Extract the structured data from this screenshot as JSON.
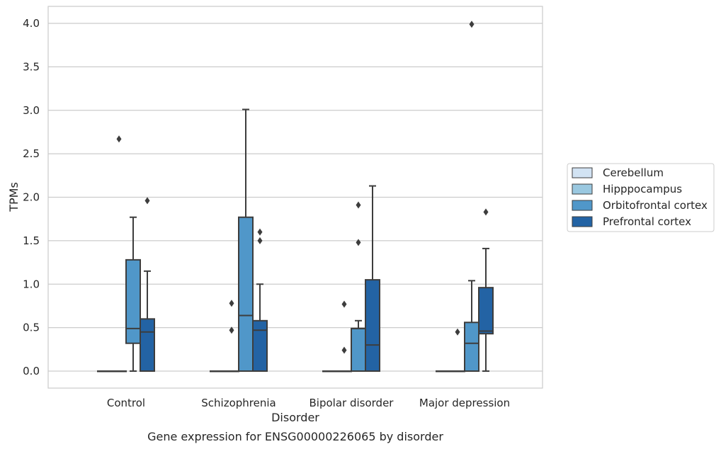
{
  "chart_data": {
    "type": "box",
    "title": "",
    "caption": "Gene expression for ENSG00000226065 by disorder",
    "xlabel": "Disorder",
    "ylabel": "TPMs",
    "ylim": [
      -0.2,
      4.2
    ],
    "yticks": [
      "0.0",
      "0.5",
      "1.0",
      "1.5",
      "2.0",
      "2.5",
      "3.0",
      "3.5",
      "4.0"
    ],
    "grid": "horizontal",
    "legend_position": "right",
    "categories": [
      "Control",
      "Schizophrenia",
      "Bipolar disorder",
      "Major depression"
    ],
    "series": [
      {
        "name": "Cerebellum",
        "color": "#d2e3f3",
        "boxes": [
          {
            "q1": 0,
            "median": 0,
            "q3": 0,
            "whisker_low": 0,
            "whisker_high": 0,
            "outliers": []
          },
          {
            "q1": 0,
            "median": 0,
            "q3": 0,
            "whisker_low": 0,
            "whisker_high": 0,
            "outliers": []
          },
          {
            "q1": 0,
            "median": 0,
            "q3": 0,
            "whisker_low": 0,
            "whisker_high": 0,
            "outliers": []
          },
          {
            "q1": 0,
            "median": 0,
            "q3": 0,
            "whisker_low": 0,
            "whisker_high": 0,
            "outliers": []
          }
        ]
      },
      {
        "name": "Hipppocampus",
        "color": "#9ac8e0",
        "boxes": [
          {
            "q1": 0,
            "median": 0,
            "q3": 0,
            "whisker_low": 0,
            "whisker_high": 0,
            "outliers": [
              2.67
            ]
          },
          {
            "q1": 0,
            "median": 0,
            "q3": 0,
            "whisker_low": 0,
            "whisker_high": 0,
            "outliers": [
              0.47,
              0.78
            ]
          },
          {
            "q1": 0,
            "median": 0,
            "q3": 0,
            "whisker_low": 0,
            "whisker_high": 0,
            "outliers": [
              0.24,
              0.77
            ]
          },
          {
            "q1": 0,
            "median": 0,
            "q3": 0,
            "whisker_low": 0,
            "whisker_high": 0,
            "outliers": [
              0.45
            ]
          }
        ]
      },
      {
        "name": "Orbitofrontal cortex",
        "color": "#5097c9",
        "boxes": [
          {
            "q1": 0.32,
            "median": 0.49,
            "q3": 1.28,
            "whisker_low": 0,
            "whisker_high": 1.77,
            "outliers": []
          },
          {
            "q1": 0,
            "median": 0.64,
            "q3": 1.77,
            "whisker_low": 0,
            "whisker_high": 3.01,
            "outliers": []
          },
          {
            "q1": 0,
            "median": 0.49,
            "q3": 0.49,
            "whisker_low": 0,
            "whisker_high": 0.58,
            "outliers": [
              1.48,
              1.91
            ]
          },
          {
            "q1": 0,
            "median": 0.32,
            "q3": 0.56,
            "whisker_low": 0,
            "whisker_high": 1.04,
            "outliers": [
              3.99
            ]
          }
        ]
      },
      {
        "name": "Prefrontal cortex",
        "color": "#2363a4",
        "boxes": [
          {
            "q1": 0,
            "median": 0.45,
            "q3": 0.6,
            "whisker_low": 0,
            "whisker_high": 1.15,
            "outliers": [
              1.96
            ]
          },
          {
            "q1": 0,
            "median": 0.47,
            "q3": 0.58,
            "whisker_low": 0,
            "whisker_high": 1.0,
            "outliers": [
              1.5,
              1.6
            ]
          },
          {
            "q1": 0,
            "median": 0.3,
            "q3": 1.05,
            "whisker_low": 0,
            "whisker_high": 2.13,
            "outliers": []
          },
          {
            "q1": 0.43,
            "median": 0.46,
            "q3": 0.96,
            "whisker_low": 0,
            "whisker_high": 1.41,
            "outliers": [
              1.83
            ]
          }
        ]
      }
    ]
  }
}
